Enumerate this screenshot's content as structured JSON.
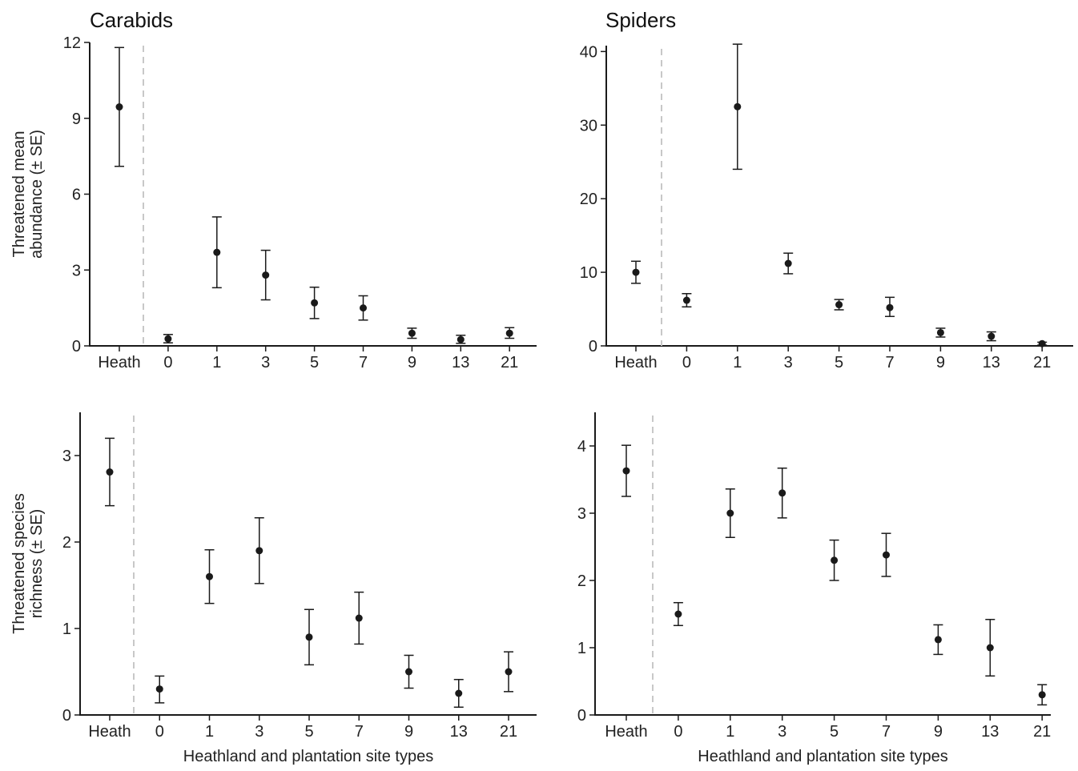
{
  "chart_data": [
    {
      "type": "scatter",
      "title": "Carabids",
      "ylabel": [
        "Threatened mean",
        "abundance (± SE)"
      ],
      "xlabel": "",
      "categories": [
        "Heath",
        "0",
        "1",
        "3",
        "5",
        "7",
        "9",
        "13",
        "21"
      ],
      "yticks": [
        "0",
        "3",
        "6",
        "9",
        "12"
      ],
      "ylim": [
        0,
        12
      ],
      "separator_after": "Heath",
      "series": [
        {
          "values": [
            9.45,
            0.28,
            3.7,
            2.8,
            1.7,
            1.5,
            0.5,
            0.25,
            0.5
          ],
          "lower": [
            7.1,
            0.12,
            2.3,
            1.82,
            1.08,
            1.02,
            0.3,
            0.1,
            0.3
          ],
          "upper": [
            11.8,
            0.45,
            5.1,
            3.78,
            2.32,
            1.98,
            0.7,
            0.42,
            0.72
          ]
        }
      ]
    },
    {
      "type": "scatter",
      "title": "Spiders",
      "ylabel": [],
      "xlabel": "",
      "categories": [
        "Heath",
        "0",
        "1",
        "3",
        "5",
        "7",
        "9",
        "13",
        "21"
      ],
      "yticks": [
        "0",
        "10",
        "20",
        "30",
        "40"
      ],
      "ylim": [
        0,
        40.8
      ],
      "separator_after": "Heath",
      "series": [
        {
          "values": [
            10.0,
            6.2,
            32.5,
            11.2,
            5.6,
            5.2,
            1.8,
            1.3,
            0.3
          ],
          "lower": [
            8.5,
            5.3,
            24.0,
            9.8,
            4.9,
            4.0,
            1.2,
            0.7,
            0.1
          ],
          "upper": [
            11.5,
            7.1,
            41.0,
            12.6,
            6.3,
            6.6,
            2.4,
            1.9,
            0.5
          ]
        }
      ]
    },
    {
      "type": "scatter",
      "title": "",
      "ylabel": [
        "Threatened species",
        "richness (± SE)"
      ],
      "xlabel": "Heathland and plantation site types",
      "categories": [
        "Heath",
        "0",
        "1",
        "3",
        "5",
        "7",
        "9",
        "13",
        "21"
      ],
      "yticks": [
        "0",
        "1",
        "2",
        "3"
      ],
      "ylim": [
        0,
        3.5
      ],
      "separator_after": "Heath",
      "series": [
        {
          "values": [
            2.81,
            0.3,
            1.6,
            1.9,
            0.9,
            1.12,
            0.5,
            0.25,
            0.5
          ],
          "lower": [
            2.42,
            0.14,
            1.29,
            1.52,
            0.58,
            0.82,
            0.31,
            0.09,
            0.27
          ],
          "upper": [
            3.2,
            0.45,
            1.91,
            2.28,
            1.22,
            1.42,
            0.69,
            0.41,
            0.73
          ]
        }
      ]
    },
    {
      "type": "scatter",
      "title": "",
      "ylabel": [],
      "xlabel": "Heathland and plantation site types",
      "categories": [
        "Heath",
        "0",
        "1",
        "3",
        "5",
        "7",
        "9",
        "13",
        "21"
      ],
      "yticks": [
        "0",
        "1",
        "2",
        "3",
        "4"
      ],
      "ylim": [
        0,
        4.5
      ],
      "separator_after": "Heath",
      "series": [
        {
          "values": [
            3.63,
            1.5,
            3.0,
            3.3,
            2.3,
            2.38,
            1.12,
            1.0,
            0.3
          ],
          "lower": [
            3.25,
            1.33,
            2.64,
            2.93,
            2.0,
            2.06,
            0.9,
            0.58,
            0.15
          ],
          "upper": [
            4.01,
            1.67,
            3.36,
            3.67,
            2.6,
            2.7,
            1.34,
            1.42,
            0.45
          ]
        }
      ]
    }
  ],
  "colors": {
    "marks": "#1a1a1a",
    "axis": "#1a1a1a",
    "separator": "#c8c8c8"
  }
}
